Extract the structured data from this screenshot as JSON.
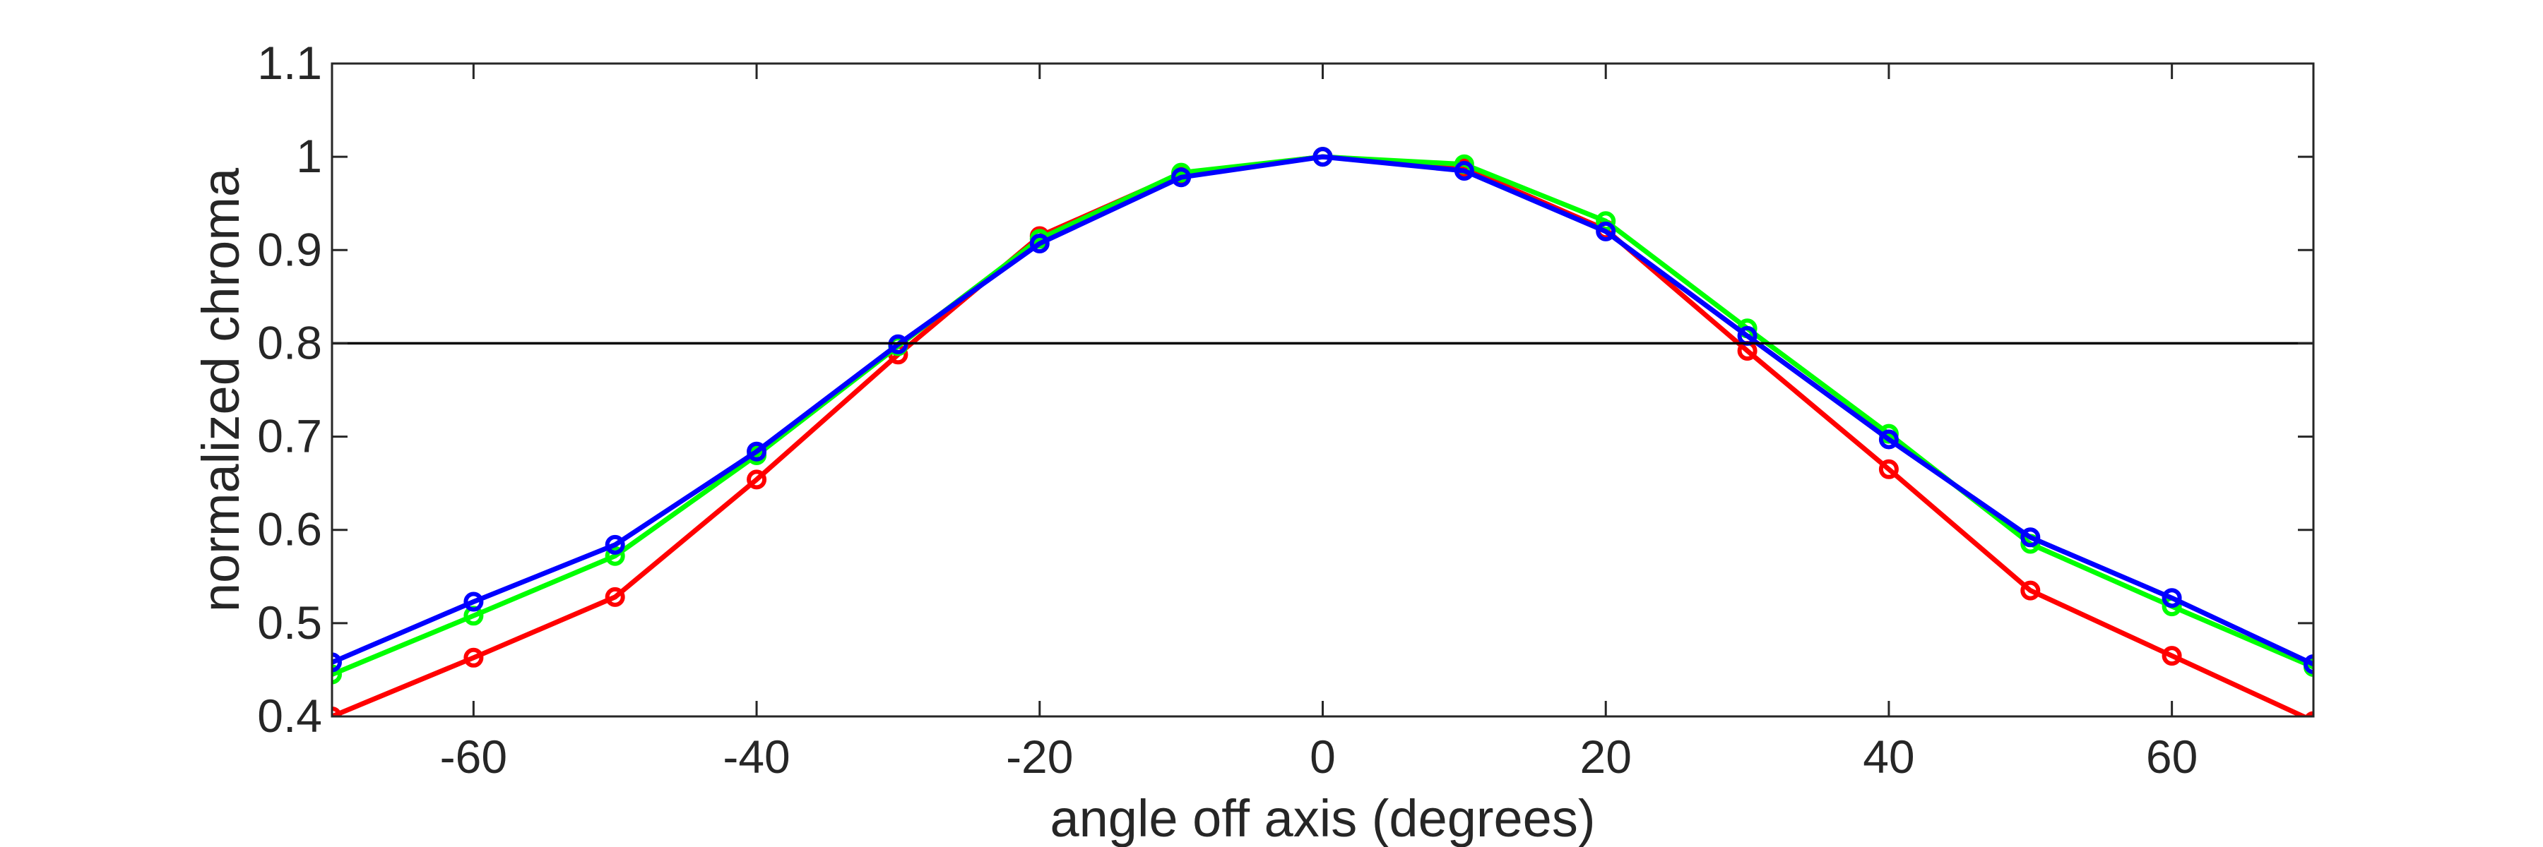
{
  "chart_data": {
    "type": "line",
    "title": "",
    "xlabel": "angle off axis (degrees)",
    "ylabel": "normalized chroma",
    "xlim": [
      -70,
      70
    ],
    "ylim": [
      0.4,
      1.1
    ],
    "xticks": [
      -60,
      -40,
      -20,
      0,
      20,
      40,
      60
    ],
    "xtick_labels": [
      "-60",
      "-40",
      "-20",
      "0",
      "20",
      "40",
      "60"
    ],
    "yticks": [
      0.4,
      0.5,
      0.6,
      0.7,
      0.8,
      0.9,
      1.0,
      1.1
    ],
    "ytick_labels": [
      "0.4",
      "0.5",
      "0.6",
      "0.7",
      "0.8",
      "0.9",
      "1",
      "1.1"
    ],
    "grid": false,
    "legend": "none",
    "reference_line": {
      "y": 0.8,
      "color": "#000000"
    },
    "x": [
      -70,
      -60,
      -50,
      -40,
      -30,
      -20,
      -10,
      0,
      10,
      20,
      30,
      40,
      50,
      60,
      70
    ],
    "series": [
      {
        "color": "#ff0000",
        "values": [
          0.4,
          0.463,
          0.528,
          0.654,
          0.788,
          0.915,
          0.982,
          1.0,
          0.988,
          0.922,
          0.792,
          0.665,
          0.535,
          0.465,
          0.395
        ]
      },
      {
        "color": "#00ff00",
        "values": [
          0.445,
          0.508,
          0.572,
          0.68,
          0.797,
          0.912,
          0.983,
          1.0,
          0.992,
          0.931,
          0.816,
          0.703,
          0.585,
          0.518,
          0.453
        ]
      },
      {
        "color": "#0000ff",
        "values": [
          0.458,
          0.523,
          0.584,
          0.684,
          0.799,
          0.907,
          0.978,
          1.0,
          0.985,
          0.92,
          0.808,
          0.697,
          0.592,
          0.527,
          0.456
        ]
      }
    ]
  }
}
